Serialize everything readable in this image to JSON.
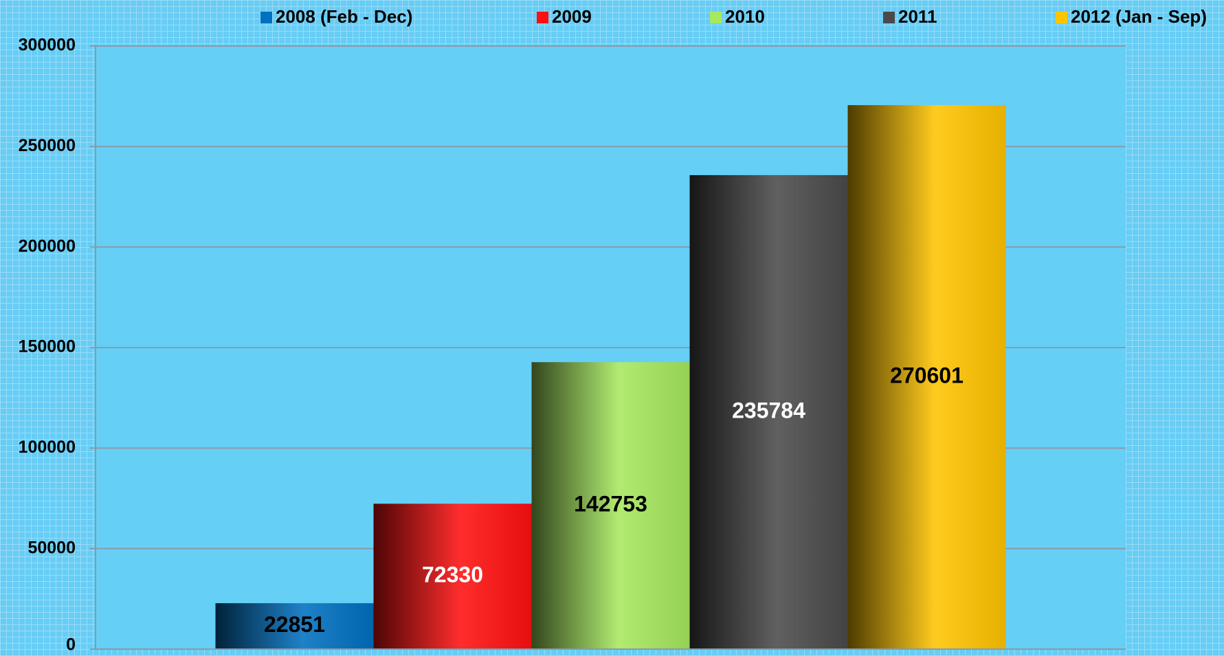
{
  "chart_data": {
    "type": "bar",
    "categories": [
      null
    ],
    "series": [
      {
        "name": "2008 (Feb - Dec)",
        "color": "#0070c0",
        "label_color": "#000000",
        "values": [
          22851
        ]
      },
      {
        "name": "2009",
        "color": "#ff1010",
        "label_color": "#ffffff",
        "values": [
          72330
        ]
      },
      {
        "name": "2010",
        "color": "#a6e85e",
        "label_color": "#000000",
        "values": [
          142753
        ]
      },
      {
        "name": "2011",
        "color": "#4a4a4a",
        "label_color": "#ffffff",
        "values": [
          235784
        ]
      },
      {
        "name": "2012 (Jan - Sep)",
        "color": "#ffc400",
        "label_color": "#000000",
        "values": [
          270601
        ]
      }
    ],
    "ylim": [
      0,
      300000
    ],
    "yticks": [
      0,
      50000,
      100000,
      150000,
      200000,
      250000,
      300000
    ],
    "grid": true,
    "legend": "top",
    "data_labels": true
  }
}
